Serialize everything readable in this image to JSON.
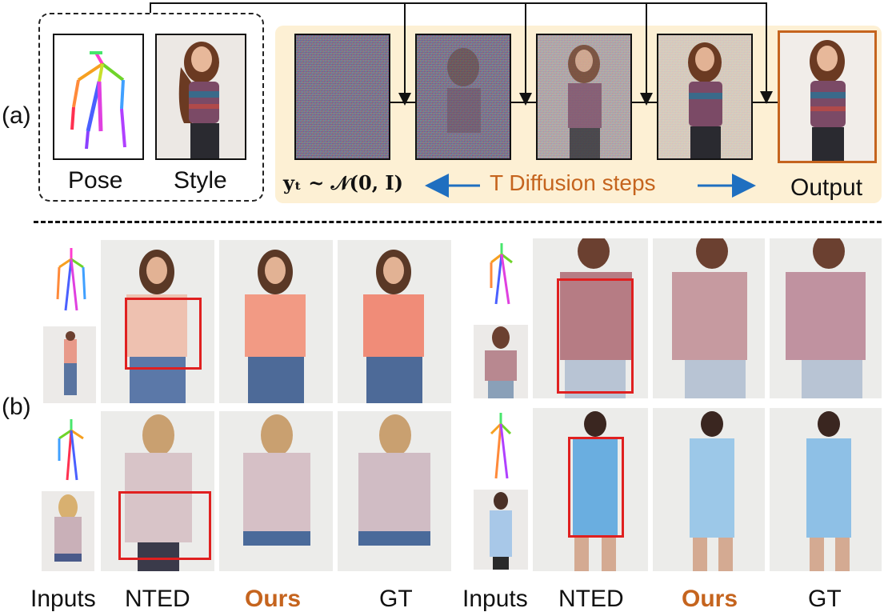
{
  "panel_a_label": "(a)",
  "panel_b_label": "(b)",
  "input_captions": {
    "pose": "Pose",
    "style": "Style"
  },
  "formula": "yₜ ~ 𝒩(0, I)",
  "steps_label": "T Diffusion steps",
  "output_label": "Output",
  "bottom_captions": {
    "left": [
      "Inputs",
      "NTED",
      "Ours",
      "GT"
    ],
    "right": [
      "Inputs",
      "NTED",
      "Ours",
      "GT"
    ]
  },
  "colors": {
    "accent": "#c5641e",
    "highlight_box": "#e02020",
    "diffusion_bg": "#fdf0d4"
  }
}
